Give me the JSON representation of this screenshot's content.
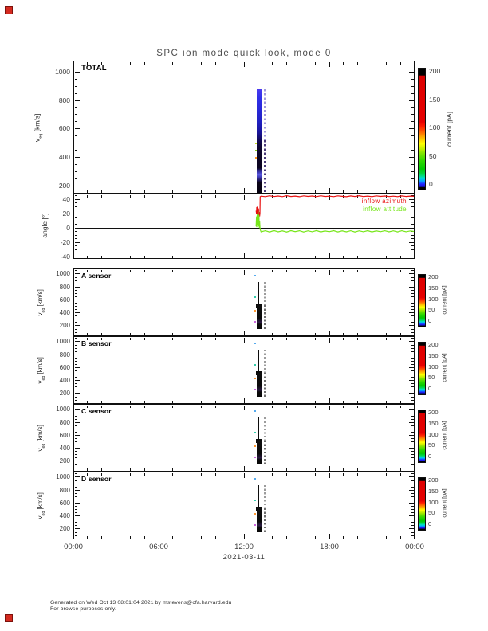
{
  "page": {
    "title": "SPC ion mode quick look, mode 0",
    "date_label": "2021-03-11",
    "footer_line1": "Generated on Wed Oct 13 08:01:04 2021 by mstevens@cfa.harvard.edu",
    "footer_line2": "For browse purposes only."
  },
  "axis": {
    "x_labels": [
      "00:00",
      "06:00",
      "12:00",
      "18:00",
      "00:00"
    ],
    "x_major_hours": [
      0,
      6,
      12,
      18,
      24
    ],
    "x_minor_step_hours": 1
  },
  "colorbar": {
    "label": "current [pA]",
    "ticks": [
      0,
      50,
      100,
      150,
      200
    ],
    "range": [
      0,
      200
    ]
  },
  "colors": {
    "azimuth_red": "#e81010",
    "attitude_green": "#77e61a",
    "frame_black": "#101010",
    "corner_marker_red": "#d42a20"
  },
  "chart_data": [
    {
      "type": "heatmap",
      "title": "TOTAL",
      "ylabel_parts": {
        "pre": "v",
        "sub": "eq",
        "post": " [km/s]"
      },
      "ylim": [
        145,
        1080
      ],
      "yticks": [
        200,
        400,
        600,
        800,
        1000
      ],
      "y_minor_step": 50,
      "xlim_hours": [
        0,
        24
      ],
      "colorbar_range": [
        0,
        200
      ],
      "burst": {
        "t_start": 12.9,
        "t_end": 13.25,
        "t_dashed_start": 13.38,
        "t_dashed_end": 13.52,
        "v_min": 150,
        "v_max": 878,
        "v_bright_band": 280,
        "description": "ion current spectrogram burst 12:54-13:31, blue 50-150 pA at high v, dark <20 pA below 520 km/s"
      },
      "dots": [
        {
          "t": 12.82,
          "v": 500,
          "color": "#ccdd22"
        },
        {
          "t": 12.82,
          "v": 450,
          "color": "#88cc22"
        },
        {
          "t": 12.83,
          "v": 395,
          "color": "#ff9922"
        }
      ]
    },
    {
      "type": "line",
      "ylabel": "angle [°]",
      "ylim": [
        -43.3,
        47.8
      ],
      "yticks": [
        -40,
        -20,
        0,
        20,
        40
      ],
      "y_minor_step": 5,
      "zero_line": 0,
      "series": [
        {
          "name": "inflow azimuth",
          "color": "#e81010",
          "points": [
            [
              12.85,
              24
            ],
            [
              12.88,
              20
            ],
            [
              12.9,
              29
            ],
            [
              12.93,
              18
            ],
            [
              12.96,
              30
            ],
            [
              12.99,
              21
            ],
            [
              13.02,
              27
            ],
            [
              13.05,
              15
            ],
            [
              13.08,
              22
            ],
            [
              13.1,
              16
            ],
            [
              13.12,
              20
            ],
            [
              13.14,
              43.5
            ],
            [
              13.2,
              44.2
            ],
            [
              13.5,
              43.6
            ],
            [
              13.8,
              44.8
            ],
            [
              14.1,
              43.7
            ],
            [
              14.4,
              44.5
            ],
            [
              14.7,
              43.6
            ],
            [
              15.0,
              44.9
            ],
            [
              15.3,
              43.8
            ],
            [
              15.6,
              44.4
            ],
            [
              15.9,
              43.5
            ],
            [
              16.2,
              44.7
            ],
            [
              16.5,
              43.9
            ],
            [
              16.8,
              44.5
            ],
            [
              17.1,
              43.6
            ],
            [
              17.4,
              44.8
            ],
            [
              17.7,
              43.8
            ],
            [
              18.0,
              44.3
            ],
            [
              18.3,
              43.6
            ],
            [
              18.6,
              44.7
            ],
            [
              18.9,
              44.0
            ],
            [
              19.2,
              43.5
            ],
            [
              19.5,
              44.6
            ],
            [
              19.8,
              43.8
            ],
            [
              20.1,
              44.9
            ],
            [
              20.4,
              43.7
            ],
            [
              20.7,
              44.4
            ],
            [
              21.0,
              43.6
            ],
            [
              21.3,
              44.7
            ],
            [
              21.6,
              43.9
            ],
            [
              21.9,
              44.5
            ],
            [
              22.2,
              43.7
            ],
            [
              22.5,
              44.3
            ],
            [
              22.8,
              43.6
            ],
            [
              23.1,
              44.6
            ],
            [
              23.4,
              43.8
            ],
            [
              23.7,
              44.4
            ],
            [
              23.95,
              44.0
            ]
          ]
        },
        {
          "name": "inflow attitude",
          "color": "#77e61a",
          "points": [
            [
              12.85,
              2
            ],
            [
              12.88,
              16
            ],
            [
              12.9,
              1
            ],
            [
              12.93,
              20
            ],
            [
              12.96,
              4
            ],
            [
              12.99,
              23
            ],
            [
              13.02,
              2
            ],
            [
              13.05,
              18
            ],
            [
              13.08,
              0
            ],
            [
              13.1,
              10
            ],
            [
              13.13,
              -2
            ],
            [
              13.2,
              -5.5
            ],
            [
              13.5,
              -4.0
            ],
            [
              13.8,
              -5.8
            ],
            [
              14.1,
              -3.8
            ],
            [
              14.4,
              -5.5
            ],
            [
              14.7,
              -4.2
            ],
            [
              15.0,
              -5.8
            ],
            [
              15.3,
              -3.9
            ],
            [
              15.6,
              -5.2
            ],
            [
              15.9,
              -4.0
            ],
            [
              16.2,
              -5.7
            ],
            [
              16.5,
              -4.1
            ],
            [
              16.8,
              -5.4
            ],
            [
              17.1,
              -3.8
            ],
            [
              17.4,
              -5.6
            ],
            [
              17.7,
              -4.3
            ],
            [
              18.0,
              -5.3
            ],
            [
              18.3,
              -3.9
            ],
            [
              18.6,
              -5.6
            ],
            [
              18.9,
              -4.2
            ],
            [
              19.2,
              -5.5
            ],
            [
              19.5,
              -4.0
            ],
            [
              19.8,
              -5.7
            ],
            [
              20.1,
              -4.1
            ],
            [
              20.4,
              -5.4
            ],
            [
              20.7,
              -3.9
            ],
            [
              21.0,
              -5.6
            ],
            [
              21.3,
              -4.2
            ],
            [
              21.6,
              -5.3
            ],
            [
              21.9,
              -4.0
            ],
            [
              22.2,
              -5.5
            ],
            [
              22.5,
              -4.1
            ],
            [
              22.8,
              -5.6
            ],
            [
              23.1,
              -4.0
            ],
            [
              23.4,
              -5.4
            ],
            [
              23.7,
              -4.2
            ],
            [
              23.95,
              -5.0
            ]
          ]
        }
      ]
    },
    {
      "type": "heatmap",
      "title": "A sensor",
      "ylabel_parts": {
        "pre": "v",
        "sub": "eq",
        "post": " [km/s]"
      },
      "ylim": [
        40,
        1086
      ],
      "yticks": [
        200,
        400,
        600,
        800,
        1000
      ],
      "y_minor_step": 50,
      "colorbar_range": [
        0,
        200
      ],
      "burst": {
        "t_start": 12.9,
        "t_end": 13.22,
        "t_dashed_start": 13.38,
        "t_dashed_end": 13.5,
        "v_min": 150,
        "v_max": 878,
        "v_wide_max": 520,
        "description": "near-saturated dark current column 12:54-13:13 plus dashed column 13:23-13:30"
      },
      "dots": [
        {
          "t": 12.8,
          "v": 975,
          "color": "#55aaee"
        },
        {
          "t": 12.78,
          "v": 640,
          "color": "#33ccaa"
        },
        {
          "t": 12.79,
          "v": 430,
          "color": "#ff9933"
        },
        {
          "t": 12.8,
          "v": 260,
          "color": "#cc66dd"
        }
      ]
    },
    {
      "type": "heatmap",
      "title": "B sensor",
      "ylabel_parts": {
        "pre": "v",
        "sub": "eq",
        "post": " [km/s]"
      },
      "ylim": [
        40,
        1086
      ],
      "yticks": [
        200,
        400,
        600,
        800,
        1000
      ],
      "y_minor_step": 50,
      "colorbar_range": [
        0,
        200
      ],
      "burst": {
        "t_start": 12.9,
        "t_end": 13.22,
        "t_dashed_start": 13.38,
        "t_dashed_end": 13.5,
        "v_min": 150,
        "v_max": 878,
        "v_wide_max": 520,
        "description": "near-saturated dark current column 12:54-13:13 plus dashed column 13:23-13:30"
      },
      "dots": [
        {
          "t": 12.8,
          "v": 975,
          "color": "#55aaee"
        },
        {
          "t": 12.78,
          "v": 640,
          "color": "#33ccaa"
        },
        {
          "t": 12.79,
          "v": 430,
          "color": "#ff9933"
        },
        {
          "t": 12.8,
          "v": 260,
          "color": "#cc66dd"
        }
      ]
    },
    {
      "type": "heatmap",
      "title": "C sensor",
      "ylabel_parts": {
        "pre": "v",
        "sub": "eq",
        "post": " [km/s]"
      },
      "ylim": [
        40,
        1086
      ],
      "yticks": [
        200,
        400,
        600,
        800,
        1000
      ],
      "y_minor_step": 50,
      "colorbar_range": [
        0,
        200
      ],
      "burst": {
        "t_start": 12.9,
        "t_end": 13.22,
        "t_dashed_start": 13.38,
        "t_dashed_end": 13.5,
        "v_min": 150,
        "v_max": 878,
        "v_wide_max": 520,
        "description": "near-saturated dark current column 12:54-13:13 plus dashed column 13:23-13:30"
      },
      "dots": [
        {
          "t": 12.8,
          "v": 975,
          "color": "#55aaee"
        },
        {
          "t": 12.78,
          "v": 640,
          "color": "#33ccaa"
        },
        {
          "t": 12.79,
          "v": 430,
          "color": "#ff9933"
        },
        {
          "t": 12.8,
          "v": 260,
          "color": "#cc66dd"
        }
      ]
    },
    {
      "type": "heatmap",
      "title": "D sensor",
      "ylabel_parts": {
        "pre": "v",
        "sub": "eq",
        "post": " [km/s]"
      },
      "ylim": [
        40,
        1086
      ],
      "yticks": [
        200,
        400,
        600,
        800,
        1000
      ],
      "y_minor_step": 50,
      "colorbar_range": [
        0,
        200
      ],
      "burst": {
        "t_start": 12.9,
        "t_end": 13.22,
        "t_dashed_start": 13.38,
        "t_dashed_end": 13.5,
        "v_min": 150,
        "v_max": 878,
        "v_wide_max": 520,
        "description": "near-saturated dark current column 12:54-13:13 plus dashed column 13:23-13:30"
      },
      "dots": [
        {
          "t": 12.8,
          "v": 975,
          "color": "#55aaee"
        },
        {
          "t": 12.78,
          "v": 640,
          "color": "#33ccaa"
        },
        {
          "t": 12.79,
          "v": 430,
          "color": "#ff9933"
        },
        {
          "t": 12.8,
          "v": 260,
          "color": "#cc66dd"
        }
      ]
    }
  ]
}
